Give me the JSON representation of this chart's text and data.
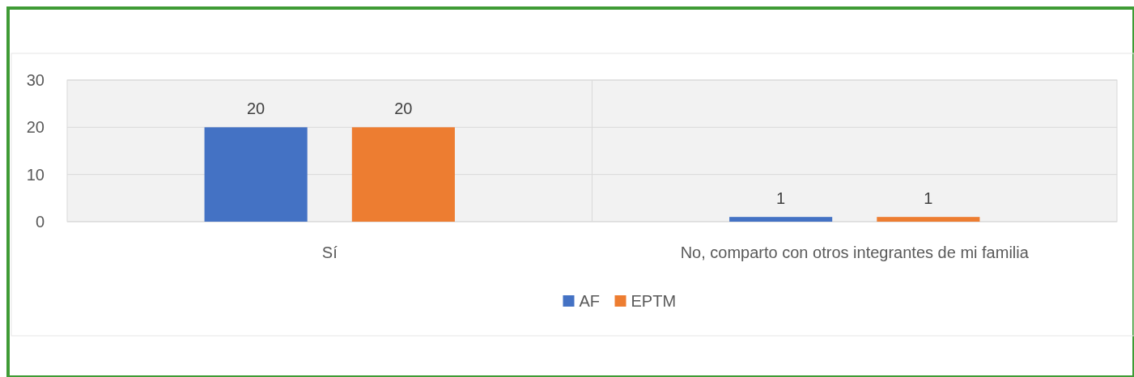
{
  "chart_data": {
    "type": "bar",
    "categories": [
      "Sí",
      "No, comparto con otros integrantes de mi familia"
    ],
    "series": [
      {
        "name": "AF",
        "color": "#4472c4",
        "values": [
          20,
          1
        ]
      },
      {
        "name": "EPTM",
        "color": "#ed7d31",
        "values": [
          20,
          1
        ]
      }
    ],
    "ylim": [
      0,
      30
    ],
    "yticks": [
      0,
      10,
      20,
      30
    ],
    "grid": true,
    "legend": "bottom",
    "data_labels": true
  }
}
